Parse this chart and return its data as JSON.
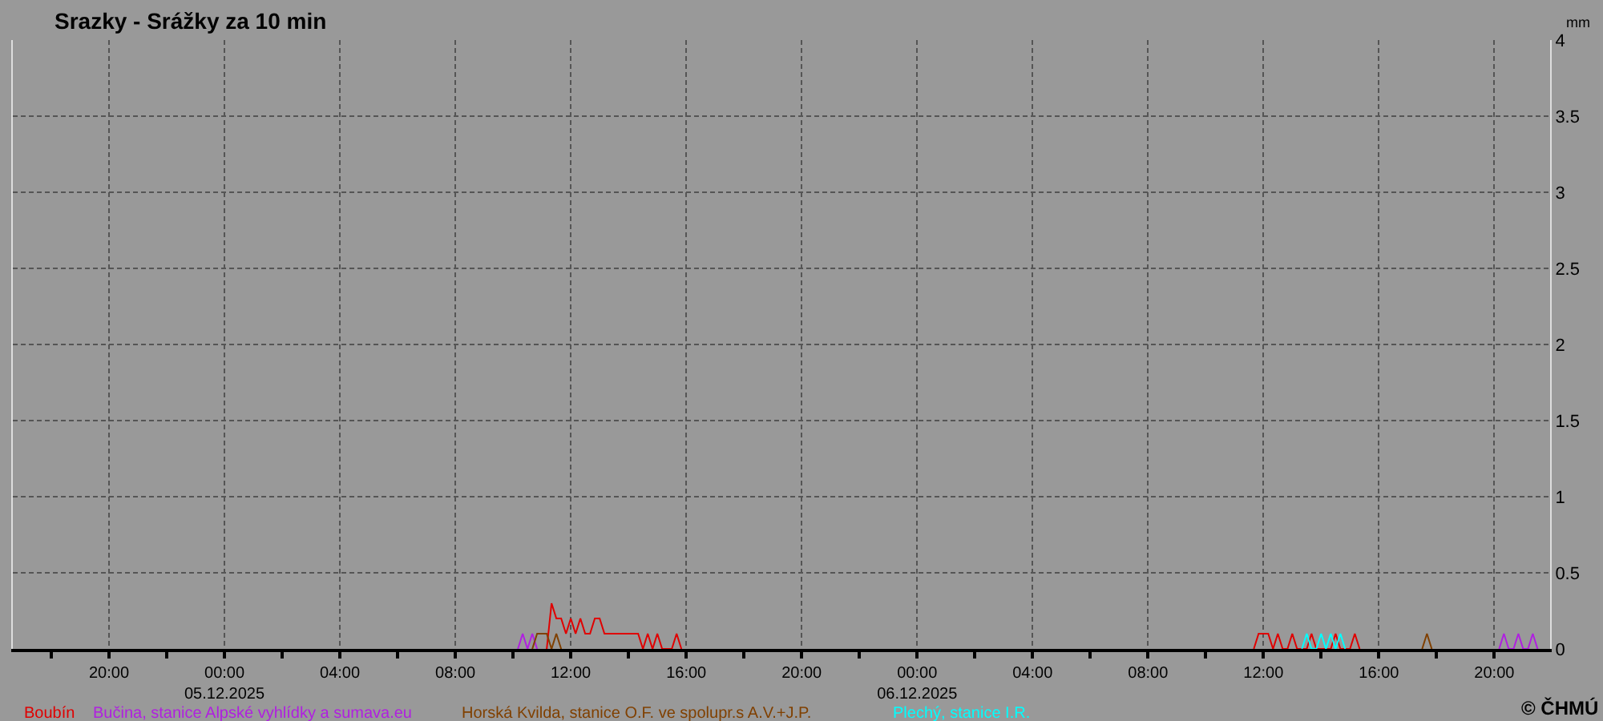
{
  "chart_data": {
    "type": "line",
    "title": "Srazky - Srážky za 10 min",
    "ylabel": "mm",
    "xlim": [
      "2025-12-04T16:40",
      "2025-12-06T21:56"
    ],
    "xticks": [
      {
        "value": "2025-12-04T18:00",
        "label": null
      },
      {
        "value": "2025-12-04T20:00",
        "label": "20:00"
      },
      {
        "value": "2025-12-04T22:00",
        "label": null
      },
      {
        "value": "2025-12-05T00:00",
        "label": "00:00\n05.12.2025"
      },
      {
        "value": "2025-12-05T02:00",
        "label": null
      },
      {
        "value": "2025-12-05T04:00",
        "label": "04:00"
      },
      {
        "value": "2025-12-05T06:00",
        "label": null
      },
      {
        "value": "2025-12-05T08:00",
        "label": "08:00"
      },
      {
        "value": "2025-12-05T10:00",
        "label": null
      },
      {
        "value": "2025-12-05T12:00",
        "label": "12:00"
      },
      {
        "value": "2025-12-05T14:00",
        "label": null
      },
      {
        "value": "2025-12-05T16:00",
        "label": "16:00"
      },
      {
        "value": "2025-12-05T18:00",
        "label": null
      },
      {
        "value": "2025-12-05T20:00",
        "label": "20:00"
      },
      {
        "value": "2025-12-05T22:00",
        "label": null
      },
      {
        "value": "2025-12-06T00:00",
        "label": "00:00\n06.12.2025"
      },
      {
        "value": "2025-12-06T02:00",
        "label": null
      },
      {
        "value": "2025-12-06T04:00",
        "label": "04:00"
      },
      {
        "value": "2025-12-06T06:00",
        "label": null
      },
      {
        "value": "2025-12-06T08:00",
        "label": "08:00"
      },
      {
        "value": "2025-12-06T10:00",
        "label": null
      },
      {
        "value": "2025-12-06T12:00",
        "label": "12:00"
      },
      {
        "value": "2025-12-06T14:00",
        "label": null
      },
      {
        "value": "2025-12-06T16:00",
        "label": "16:00"
      },
      {
        "value": "2025-12-06T18:00",
        "label": null
      },
      {
        "value": "2025-12-06T20:00",
        "label": "20:00"
      }
    ],
    "ylim": [
      0,
      4
    ],
    "yticks": [
      0,
      0.5,
      1,
      1.5,
      2,
      2.5,
      3,
      3.5,
      4
    ],
    "grid": true,
    "legend": "bottom",
    "marker": "none",
    "line_style": "solid",
    "annotations": [
      "© ČHMÚ"
    ],
    "series": [
      {
        "name": "Boubín",
        "color": "#e00000",
        "x": [
          "2025-12-05T11:10",
          "2025-12-05T11:20",
          "2025-12-05T11:30",
          "2025-12-05T11:40",
          "2025-12-05T11:50",
          "2025-12-05T12:00",
          "2025-12-05T12:10",
          "2025-12-05T12:20",
          "2025-12-05T12:30",
          "2025-12-05T12:40",
          "2025-12-05T12:50",
          "2025-12-05T13:00",
          "2025-12-05T13:10",
          "2025-12-05T14:20",
          "2025-12-05T14:30",
          "2025-12-05T14:40",
          "2025-12-05T14:50",
          "2025-12-05T15:00",
          "2025-12-05T15:10",
          "2025-12-05T15:20",
          "2025-12-05T15:30",
          "2025-12-05T15:40",
          "2025-12-05T15:50",
          "2025-12-06T00:00",
          "2025-12-06T11:40",
          "2025-12-06T11:50",
          "2025-12-06T12:10",
          "2025-12-06T12:20",
          "2025-12-06T12:30",
          "2025-12-06T12:40",
          "2025-12-06T12:50",
          "2025-12-06T13:00",
          "2025-12-06T13:10",
          "2025-12-06T13:30",
          "2025-12-06T13:40",
          "2025-12-06T13:50",
          "2025-12-06T14:20",
          "2025-12-06T14:30",
          "2025-12-06T14:40",
          "2025-12-06T15:00",
          "2025-12-06T15:10",
          "2025-12-06T15:20"
        ],
        "values": [
          0,
          0.3,
          0.2,
          0.2,
          0.1,
          0.2,
          0.1,
          0.2,
          0.1,
          0.1,
          0.2,
          0.2,
          0.1,
          0.1,
          0,
          0.1,
          0,
          0.1,
          0,
          0,
          0,
          0.1,
          0,
          null,
          0,
          0.1,
          0.1,
          0,
          0.1,
          0,
          0,
          0.1,
          0,
          0,
          0.1,
          0,
          0,
          0.1,
          0,
          0,
          0.1,
          0
        ]
      },
      {
        "name": "Bučina, stanice Alpské vyhlídky a sumava.eu",
        "color": "#b020e0",
        "x": [
          "2025-12-05T10:10",
          "2025-12-05T10:20",
          "2025-12-05T10:30",
          "2025-12-05T10:40",
          "2025-12-05T10:50",
          "2025-12-06T00:00",
          "2025-12-06T20:10",
          "2025-12-06T20:20",
          "2025-12-06T20:30",
          "2025-12-06T20:40",
          "2025-12-06T20:50",
          "2025-12-06T21:00",
          "2025-12-06T21:10",
          "2025-12-06T21:20",
          "2025-12-06T21:30"
        ],
        "values": [
          0,
          0.1,
          0,
          0.1,
          0,
          null,
          0,
          0.1,
          0,
          0,
          0.1,
          0,
          0,
          0.1,
          0
        ]
      },
      {
        "name": "Horská Kvilda, stanice O.F. ve spolupr.s A.V.+J.P.",
        "color": "#804000",
        "x": [
          "2025-12-05T10:40",
          "2025-12-05T10:50",
          "2025-12-05T11:10",
          "2025-12-05T11:20",
          "2025-12-05T11:30",
          "2025-12-05T11:40",
          "2025-12-06T00:00",
          "2025-12-06T17:30",
          "2025-12-06T17:40",
          "2025-12-06T17:50"
        ],
        "values": [
          0,
          0.1,
          0.1,
          0,
          0.1,
          0,
          null,
          0,
          0.1,
          0
        ]
      },
      {
        "name": "Plechý, stanice I.R.",
        "color": "#00ffff",
        "x": [
          "2025-12-06T13:20",
          "2025-12-06T13:30",
          "2025-12-06T13:40",
          "2025-12-06T13:50",
          "2025-12-06T14:00",
          "2025-12-06T14:10",
          "2025-12-06T14:20",
          "2025-12-06T14:30",
          "2025-12-06T14:40",
          "2025-12-06T14:50"
        ],
        "values": [
          0,
          0.1,
          0,
          0,
          0.1,
          0,
          0.1,
          0,
          0.1,
          0
        ]
      }
    ]
  }
}
